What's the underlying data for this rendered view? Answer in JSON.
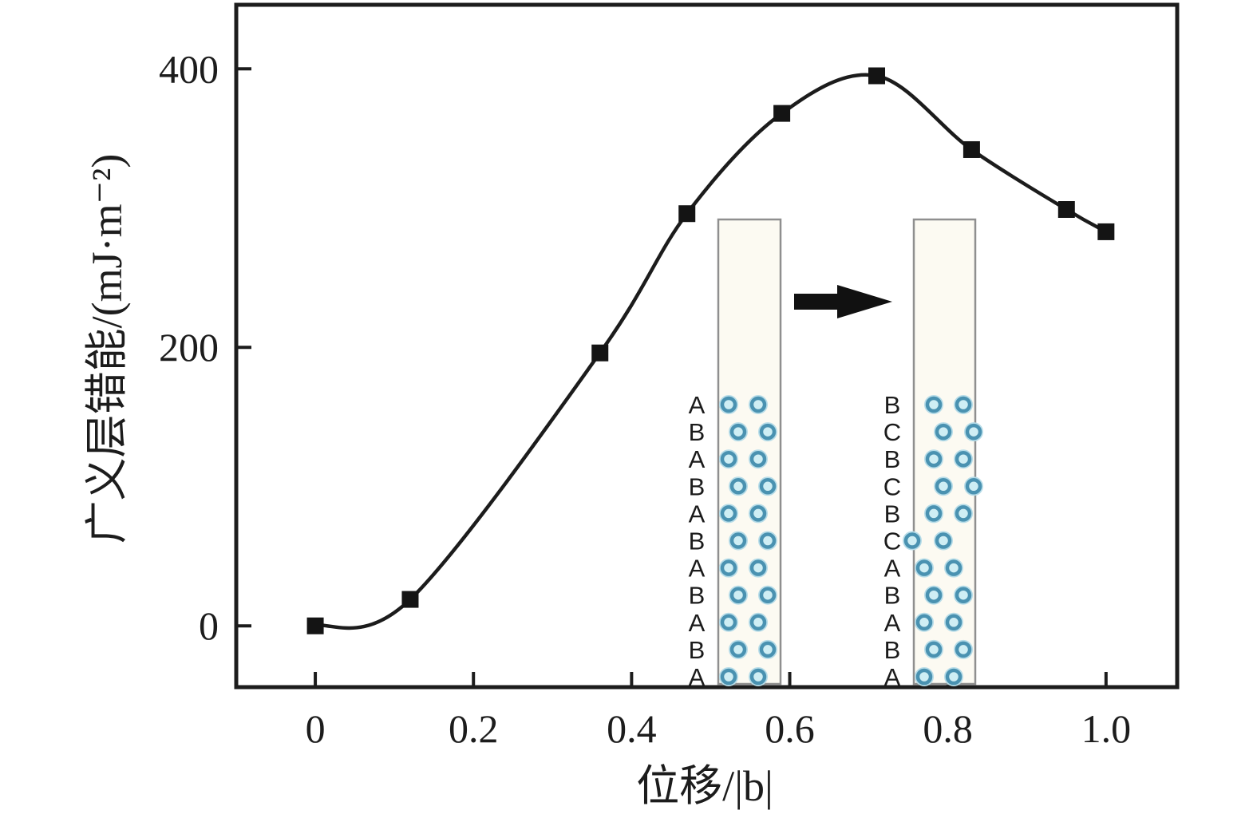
{
  "chart_data": {
    "type": "line",
    "title": "",
    "xlabel": "位移/|b|",
    "ylabel": "广义层错能/(mJ·m⁻²)",
    "series": [
      {
        "name": "generalized-stacking-fault-energy",
        "x": [
          0,
          0.12,
          0.36,
          0.47,
          0.59,
          0.71,
          0.83,
          0.95,
          1.0
        ],
        "y": [
          0,
          19,
          196,
          296,
          368,
          395,
          342,
          299,
          283
        ]
      }
    ],
    "xlim": [
      -0.1,
      1.09
    ],
    "ylim": [
      -44,
      446
    ],
    "x_ticks": [
      {
        "v": 0.0,
        "label": "0"
      },
      {
        "v": 0.2,
        "label": "0.2"
      },
      {
        "v": 0.4,
        "label": "0.4"
      },
      {
        "v": 0.6,
        "label": "0.6"
      },
      {
        "v": 0.8,
        "label": "0.8"
      },
      {
        "v": 1.0,
        "label": "1.0"
      }
    ],
    "y_ticks": [
      {
        "v": 0,
        "label": "0"
      },
      {
        "v": 200,
        "label": "200"
      },
      {
        "v": 400,
        "label": "400"
      }
    ],
    "grid": false,
    "legend": false,
    "marker": "filled-square",
    "line_color": "#1c1c1c",
    "marker_color": "#141414"
  },
  "inset": {
    "meaning": "stacking-sequence-before-and-after-shear",
    "left_stack_letters": [
      "A",
      "B",
      "A",
      "B",
      "A",
      "B",
      "A",
      "B",
      "A",
      "B",
      "A"
    ],
    "right_stack_letters": [
      "B",
      "C",
      "B",
      "C",
      "B",
      "C",
      "A",
      "B",
      "A",
      "B",
      "A"
    ],
    "fault_row_index": 5,
    "arrow_icon": "right-arrow",
    "colors": {
      "atom_fill": "#cfeef4",
      "atom_ring": "#4a92b1",
      "atom_halo": "#b6dce8",
      "box_border": "#8f8f8f",
      "box_fill": "#fcfaf2",
      "arrow": "#111111",
      "axis_ink": "#1c1c1c"
    }
  }
}
